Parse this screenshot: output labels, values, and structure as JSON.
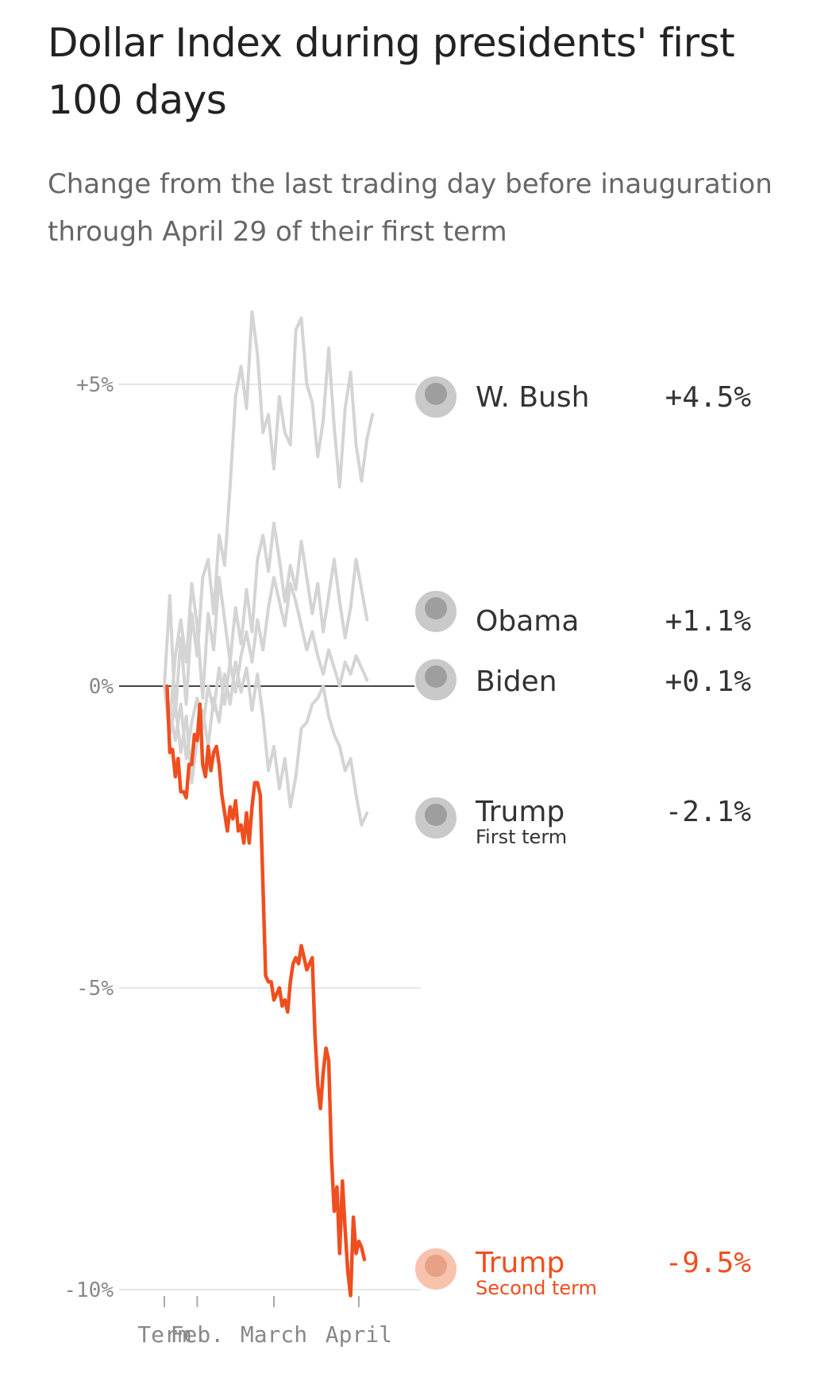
{
  "title": "Dollar Index during presidents' first 100 days",
  "subtitle": "Change from the last trading day before inauguration through April 29 of their first term",
  "chart_data": {
    "type": "line",
    "title": "Dollar Index during presidents' first 100 days",
    "subtitle": "Change from the last trading day before inauguration through April 29 of their first term",
    "xlabel": "",
    "ylabel": "",
    "x_tick_labels": [
      "Term",
      "Feb.",
      "March",
      "April"
    ],
    "x_tick_days": [
      0,
      12,
      40,
      71
    ],
    "y_ticks": [
      {
        "value": 5,
        "label": "+5%"
      },
      {
        "value": 0,
        "label": "0%"
      },
      {
        "value": -5,
        "label": "-5%"
      },
      {
        "value": -10,
        "label": "-10%"
      }
    ],
    "ylim": [
      -10,
      5
    ],
    "grid": true,
    "series": [
      {
        "name": "W. Bush",
        "final_label": "+4.5%",
        "color": "#d4d4d4",
        "highlight": false,
        "points": [
          [
            0,
            0
          ],
          [
            2,
            1.5
          ],
          [
            4,
            -0.5
          ],
          [
            6,
            0.8
          ],
          [
            8,
            -0.3
          ],
          [
            10,
            1.2
          ],
          [
            12,
            0.5
          ],
          [
            14,
            1.8
          ],
          [
            16,
            2.1
          ],
          [
            18,
            1.2
          ],
          [
            20,
            2.5
          ],
          [
            22,
            2.0
          ],
          [
            24,
            3.3
          ],
          [
            26,
            4.8
          ],
          [
            28,
            5.3
          ],
          [
            30,
            4.6
          ],
          [
            32,
            6.2
          ],
          [
            34,
            5.5
          ],
          [
            36,
            4.2
          ],
          [
            38,
            4.5
          ],
          [
            40,
            3.6
          ],
          [
            42,
            4.8
          ],
          [
            44,
            4.2
          ],
          [
            46,
            4.0
          ],
          [
            48,
            5.9
          ],
          [
            50,
            6.1
          ],
          [
            52,
            5.0
          ],
          [
            54,
            4.7
          ],
          [
            56,
            3.8
          ],
          [
            58,
            4.4
          ],
          [
            60,
            5.6
          ],
          [
            62,
            4.3
          ],
          [
            64,
            3.3
          ],
          [
            66,
            4.6
          ],
          [
            68,
            5.2
          ],
          [
            70,
            4.0
          ],
          [
            72,
            3.4
          ],
          [
            74,
            4.1
          ],
          [
            76,
            4.5
          ]
        ]
      },
      {
        "name": "Obama",
        "final_label": "+1.1%",
        "color": "#d4d4d4",
        "highlight": false,
        "points": [
          [
            0,
            0
          ],
          [
            2,
            -0.6
          ],
          [
            4,
            0.5
          ],
          [
            6,
            1.1
          ],
          [
            8,
            0.4
          ],
          [
            10,
            1.7
          ],
          [
            12,
            1.0
          ],
          [
            14,
            -0.2
          ],
          [
            16,
            1.2
          ],
          [
            18,
            0.6
          ],
          [
            20,
            1.8
          ],
          [
            22,
            1.1
          ],
          [
            24,
            0.4
          ],
          [
            26,
            1.3
          ],
          [
            28,
            0.7
          ],
          [
            30,
            1.6
          ],
          [
            32,
            0.9
          ],
          [
            34,
            2.1
          ],
          [
            36,
            2.5
          ],
          [
            38,
            1.9
          ],
          [
            40,
            2.7
          ],
          [
            42,
            2.1
          ],
          [
            44,
            1.4
          ],
          [
            46,
            2.0
          ],
          [
            48,
            1.6
          ],
          [
            50,
            2.4
          ],
          [
            52,
            1.8
          ],
          [
            54,
            1.2
          ],
          [
            56,
            1.7
          ],
          [
            58,
            0.9
          ],
          [
            60,
            1.5
          ],
          [
            62,
            2.1
          ],
          [
            64,
            1.4
          ],
          [
            66,
            0.8
          ],
          [
            68,
            1.3
          ],
          [
            70,
            2.1
          ],
          [
            72,
            1.6
          ],
          [
            74,
            1.1
          ]
        ]
      },
      {
        "name": "Biden",
        "final_label": "+0.1%",
        "color": "#d4d4d4",
        "highlight": false,
        "points": [
          [
            0,
            0
          ],
          [
            2,
            -0.4
          ],
          [
            4,
            -0.9
          ],
          [
            6,
            -0.3
          ],
          [
            8,
            -1.2
          ],
          [
            10,
            -0.6
          ],
          [
            12,
            -0.2
          ],
          [
            14,
            -0.7
          ],
          [
            16,
            0.0
          ],
          [
            18,
            -0.4
          ],
          [
            20,
            0.3
          ],
          [
            22,
            -0.3
          ],
          [
            24,
            0.4
          ],
          [
            26,
            -0.1
          ],
          [
            28,
            0.5
          ],
          [
            30,
            0.9
          ],
          [
            32,
            0.4
          ],
          [
            34,
            1.1
          ],
          [
            36,
            0.6
          ],
          [
            38,
            1.3
          ],
          [
            40,
            1.8
          ],
          [
            42,
            1.4
          ],
          [
            44,
            1.0
          ],
          [
            46,
            1.7
          ],
          [
            48,
            1.4
          ],
          [
            50,
            1.0
          ],
          [
            52,
            0.6
          ],
          [
            54,
            0.9
          ],
          [
            56,
            0.5
          ],
          [
            58,
            0.2
          ],
          [
            60,
            0.6
          ],
          [
            62,
            0.3
          ],
          [
            64,
            0.0
          ],
          [
            66,
            0.4
          ],
          [
            68,
            0.2
          ],
          [
            70,
            0.5
          ],
          [
            72,
            0.3
          ],
          [
            74,
            0.1
          ]
        ]
      },
      {
        "name": "Trump",
        "subname": "First term",
        "final_label": "-2.1%",
        "color": "#d4d4d4",
        "highlight": false,
        "points": [
          [
            0,
            0
          ],
          [
            2,
            -0.8
          ],
          [
            4,
            -0.3
          ],
          [
            6,
            -1.1
          ],
          [
            8,
            -0.5
          ],
          [
            10,
            -1.6
          ],
          [
            12,
            -0.9
          ],
          [
            14,
            -0.4
          ],
          [
            16,
            -1.0
          ],
          [
            18,
            -0.2
          ],
          [
            20,
            -0.6
          ],
          [
            22,
            0.2
          ],
          [
            24,
            -0.3
          ],
          [
            26,
            0.4
          ],
          [
            28,
            -0.1
          ],
          [
            30,
            0.3
          ],
          [
            32,
            -0.4
          ],
          [
            34,
            0.2
          ],
          [
            36,
            -0.5
          ],
          [
            38,
            -1.4
          ],
          [
            40,
            -1.0
          ],
          [
            42,
            -1.7
          ],
          [
            44,
            -1.2
          ],
          [
            46,
            -2.0
          ],
          [
            48,
            -1.5
          ],
          [
            50,
            -0.7
          ],
          [
            52,
            -0.6
          ],
          [
            54,
            -0.3
          ],
          [
            56,
            -0.2
          ],
          [
            58,
            0.0
          ],
          [
            60,
            -0.5
          ],
          [
            62,
            -0.8
          ],
          [
            64,
            -1.0
          ],
          [
            66,
            -1.4
          ],
          [
            68,
            -1.2
          ],
          [
            70,
            -1.8
          ],
          [
            72,
            -2.3
          ],
          [
            74,
            -2.1
          ]
        ]
      },
      {
        "name": "Trump",
        "subname": "Second term",
        "final_label": "-9.5%",
        "color": "#ef4e1f",
        "highlight": true,
        "points": [
          [
            1,
            0
          ],
          [
            2,
            -1.1
          ],
          [
            3,
            -1.05
          ],
          [
            4,
            -1.5
          ],
          [
            5,
            -1.2
          ],
          [
            6,
            -1.75
          ],
          [
            7,
            -1.75
          ],
          [
            8,
            -1.85
          ],
          [
            9,
            -1.3
          ],
          [
            10,
            -1.3
          ],
          [
            11,
            -0.8
          ],
          [
            12,
            -0.9
          ],
          [
            13,
            -0.3
          ],
          [
            14,
            -1.3
          ],
          [
            15,
            -1.5
          ],
          [
            16,
            -1.0
          ],
          [
            17,
            -1.4
          ],
          [
            18,
            -1.1
          ],
          [
            19,
            -1.0
          ],
          [
            20,
            -1.3
          ],
          [
            21,
            -1.8
          ],
          [
            22,
            -2.1
          ],
          [
            23,
            -2.4
          ],
          [
            24,
            -2.0
          ],
          [
            25,
            -2.2
          ],
          [
            26,
            -1.9
          ],
          [
            27,
            -2.4
          ],
          [
            28,
            -2.3
          ],
          [
            29,
            -2.6
          ],
          [
            30,
            -2.1
          ],
          [
            31,
            -2.6
          ],
          [
            32,
            -2.0
          ],
          [
            33,
            -1.6
          ],
          [
            34,
            -1.6
          ],
          [
            35,
            -1.8
          ],
          [
            36,
            -3.3
          ],
          [
            37,
            -4.8
          ],
          [
            38,
            -4.9
          ],
          [
            39,
            -4.9
          ],
          [
            40,
            -5.2
          ],
          [
            41,
            -5.1
          ],
          [
            42,
            -5.0
          ],
          [
            43,
            -5.3
          ],
          [
            44,
            -5.2
          ],
          [
            45,
            -5.4
          ],
          [
            46,
            -4.9
          ],
          [
            47,
            -4.6
          ],
          [
            48,
            -4.5
          ],
          [
            49,
            -4.6
          ],
          [
            50,
            -4.3
          ],
          [
            51,
            -4.5
          ],
          [
            52,
            -4.7
          ],
          [
            53,
            -4.6
          ],
          [
            54,
            -4.5
          ],
          [
            55,
            -5.8
          ],
          [
            56,
            -6.6
          ],
          [
            57,
            -7.0
          ],
          [
            58,
            -6.4
          ],
          [
            59,
            -6.0
          ],
          [
            60,
            -6.2
          ],
          [
            61,
            -7.8
          ],
          [
            62,
            -8.7
          ],
          [
            63,
            -8.3
          ],
          [
            64,
            -9.4
          ],
          [
            65,
            -8.2
          ],
          [
            66,
            -9.0
          ],
          [
            67,
            -9.7
          ],
          [
            68,
            -10.1
          ],
          [
            69,
            -8.8
          ],
          [
            70,
            -9.4
          ],
          [
            71,
            -9.2
          ],
          [
            72,
            -9.3
          ],
          [
            73,
            -9.5
          ]
        ]
      }
    ]
  }
}
